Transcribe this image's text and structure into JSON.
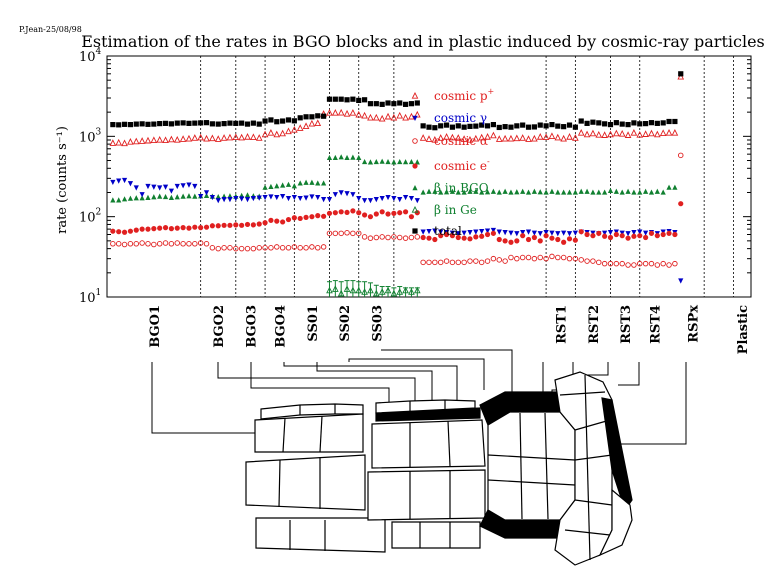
{
  "author_stamp": "P.Jean-25/08/98",
  "chart_data": {
    "type": "scatter",
    "title": "Estimation of the rates in BGO blocks and in plastic induced by cosmic-ray particles",
    "ylabel": "rate (counts s⁻¹)",
    "yscale": "log",
    "ylim": [
      10,
      10000
    ],
    "y_ticks": [
      {
        "value": 10,
        "base": "10",
        "exp": "1"
      },
      {
        "value": 100,
        "base": "10",
        "exp": "2"
      },
      {
        "value": 1000,
        "base": "10",
        "exp": "3"
      },
      {
        "value": 10000,
        "base": "10",
        "exp": "4"
      }
    ],
    "x": [
      1,
      2,
      3,
      4,
      5,
      6,
      7,
      8,
      9,
      10,
      11,
      12,
      13,
      14,
      15,
      16,
      17,
      18,
      19,
      20,
      21,
      22,
      23,
      24,
      25,
      26,
      27,
      28,
      29,
      30,
      31,
      32,
      33,
      34,
      35,
      36,
      37,
      38,
      39,
      40,
      41,
      42,
      43,
      44,
      45,
      46,
      47,
      48,
      49,
      50,
      51,
      52,
      53,
      54,
      55,
      56,
      57,
      58,
      59,
      60,
      61,
      62,
      63,
      64,
      65,
      66,
      67,
      68,
      69,
      70,
      71,
      72,
      73,
      74,
      75,
      76,
      77,
      78,
      79,
      80,
      81,
      82,
      83,
      84,
      85,
      86,
      87,
      88,
      89,
      90,
      91,
      92,
      93,
      94,
      95,
      96,
      97,
      98
    ],
    "xlim": [
      0,
      110
    ],
    "grid": false,
    "group_dividers": [
      16,
      22,
      27,
      32,
      38,
      43,
      49,
      75,
      80,
      86,
      91,
      102,
      107
    ],
    "groups": [
      {
        "name": "BGO1",
        "x": 8
      },
      {
        "name": "BGO2",
        "x": 19
      },
      {
        "name": "BGO3",
        "x": 24.5
      },
      {
        "name": "BGO4",
        "x": 29.5
      },
      {
        "name": "SS01",
        "x": 35
      },
      {
        "name": "SS02",
        "x": 40.5
      },
      {
        "name": "SS03",
        "x": 46
      },
      {
        "name": "RST1",
        "x": 77.5
      },
      {
        "name": "RST2",
        "x": 83
      },
      {
        "name": "RST3",
        "x": 88.5
      },
      {
        "name": "RST4",
        "x": 93.5
      },
      {
        "name": "RSPx",
        "x": 100
      },
      {
        "name": "Plastic",
        "x": 108.5
      }
    ],
    "legend": {
      "placement": "top-center",
      "entries": [
        {
          "key": "p",
          "label": "cosmic p",
          "sup": "+"
        },
        {
          "key": "gamma",
          "label": "cosmic γ",
          "sup": ""
        },
        {
          "key": "alpha",
          "label": "cosmic α",
          "sup": ""
        },
        {
          "key": "e",
          "label": "cosmic e",
          "sup": "-"
        },
        {
          "key": "bbgo",
          "label": "β in BGO",
          "sup": ""
        },
        {
          "key": "bge",
          "label": "β in Ge",
          "sup": ""
        },
        {
          "key": "total",
          "label": "total",
          "sup": ""
        }
      ]
    },
    "series": [
      {
        "key": "total",
        "marker": "square-filled",
        "color": "#000000",
        "values": [
          1400,
          1390,
          1410,
          1400,
          1420,
          1430,
          1410,
          1420,
          1440,
          1450,
          1430,
          1460,
          1470,
          1450,
          1460,
          1470,
          1480,
          1430,
          1420,
          1440,
          1460,
          1450,
          1460,
          1420,
          1460,
          1420,
          1550,
          1600,
          1520,
          1550,
          1600,
          1560,
          1700,
          1750,
          1750,
          1800,
          1780,
          2900,
          2900,
          2900,
          2850,
          2900,
          2800,
          2850,
          2550,
          2550,
          2500,
          2600,
          2550,
          2600,
          2500,
          2550,
          2600,
          1350,
          1300,
          1280,
          1350,
          1380,
          1300,
          1350,
          1300,
          1330,
          1340,
          1380,
          1350,
          1400,
          1290,
          1320,
          1300,
          1350,
          1380,
          1300,
          1310,
          1380,
          1350,
          1400,
          1340,
          1320,
          1380,
          1300,
          1550,
          1450,
          1500,
          1470,
          1430,
          1400,
          1480,
          1420,
          1400,
          1470,
          1430,
          1440,
          1480,
          1450,
          1470,
          1530,
          1530,
          6000
        ]
      },
      {
        "key": "p",
        "marker": "triangle-open",
        "color": "#e02020",
        "values": [
          820,
          830,
          815,
          850,
          860,
          870,
          880,
          890,
          900,
          890,
          910,
          900,
          920,
          930,
          950,
          960,
          930,
          940,
          920,
          950,
          960,
          970,
          960,
          980,
          970,
          950,
          1050,
          1100,
          1050,
          1080,
          1150,
          1200,
          1260,
          1330,
          1430,
          1450,
          1890,
          1950,
          1950,
          1960,
          1900,
          1950,
          1850,
          1800,
          1700,
          1700,
          1650,
          1750,
          1700,
          1800,
          1700,
          1750,
          1850,
          950,
          920,
          900,
          950,
          980,
          960,
          950,
          920,
          900,
          930,
          960,
          980,
          1020,
          920,
          930,
          930,
          940,
          950,
          920,
          930,
          980,
          970,
          1000,
          960,
          930,
          980,
          950,
          1100,
          1050,
          1080,
          1040,
          1030,
          1050,
          1080,
          1070,
          1030,
          1100,
          1040,
          1060,
          1080,
          1050,
          1090,
          1100,
          1100,
          5500
        ]
      },
      {
        "key": "alpha",
        "marker": "circle-open",
        "color": "#e02020",
        "values": [
          46,
          46,
          45,
          46,
          46,
          47,
          46,
          45,
          46,
          47,
          46,
          47,
          46,
          46,
          46,
          47,
          46,
          41,
          40,
          41,
          41,
          40,
          40,
          40,
          40,
          41,
          41,
          41,
          42,
          41,
          41,
          42,
          41,
          41,
          42,
          41,
          42,
          62,
          62,
          62,
          63,
          62,
          62,
          56,
          54,
          55,
          56,
          55,
          56,
          55,
          54,
          55,
          56,
          27,
          27,
          27,
          27,
          28,
          27,
          27,
          27,
          28,
          28,
          27,
          28,
          30,
          29,
          28,
          31,
          30,
          31,
          31,
          30,
          31,
          30,
          32,
          31,
          31,
          30,
          30,
          29,
          28,
          28,
          27,
          26,
          26,
          26,
          26,
          25,
          25,
          26,
          26,
          26,
          25,
          26,
          25,
          26,
          580
        ]
      },
      {
        "key": "e",
        "marker": "circle-filled",
        "color": "#e02020",
        "values": [
          66,
          65,
          64,
          66,
          68,
          70,
          70,
          71,
          72,
          73,
          71,
          72,
          73,
          72,
          74,
          73,
          74,
          77,
          77,
          78,
          78,
          79,
          78,
          80,
          79,
          81,
          84,
          90,
          88,
          86,
          92,
          97,
          95,
          98,
          100,
          103,
          101,
          110,
          112,
          115,
          113,
          118,
          112,
          105,
          100,
          108,
          115,
          108,
          110,
          112,
          115,
          100,
          112,
          55,
          54,
          52,
          58,
          60,
          58,
          55,
          54,
          53,
          56,
          57,
          60,
          62,
          52,
          50,
          48,
          50,
          58,
          52,
          55,
          50,
          58,
          54,
          52,
          48,
          53,
          51,
          65,
          60,
          58,
          62,
          57,
          55,
          60,
          58,
          54,
          57,
          58,
          55,
          62,
          58,
          60,
          62,
          60,
          145
        ]
      },
      {
        "key": "gamma",
        "marker": "triangle-down-filled",
        "color": "#0000c8",
        "values": [
          270,
          280,
          285,
          260,
          230,
          190,
          240,
          235,
          230,
          235,
          210,
          240,
          245,
          250,
          240,
          180,
          200,
          175,
          160,
          165,
          165,
          170,
          168,
          165,
          170,
          172,
          175,
          178,
          175,
          180,
          170,
          175,
          170,
          172,
          178,
          175,
          165,
          165,
          190,
          200,
          195,
          190,
          170,
          160,
          160,
          165,
          170,
          175,
          170,
          165,
          175,
          170,
          160,
          65,
          66,
          67,
          65,
          64,
          63,
          62,
          63,
          64,
          65,
          66,
          67,
          68,
          65,
          64,
          63,
          62,
          64,
          65,
          63,
          62,
          64,
          63,
          62,
          63,
          62,
          63,
          65,
          64,
          63,
          62,
          63,
          64,
          65,
          63,
          62,
          64,
          65,
          63,
          64,
          62,
          65,
          66,
          64,
          16
        ]
      },
      {
        "key": "bbgo",
        "marker": "triangle-filled",
        "color": "#108030",
        "values": [
          160,
          160,
          165,
          168,
          170,
          170,
          172,
          175,
          178,
          176,
          172,
          175,
          178,
          180,
          178,
          180,
          182,
          178,
          176,
          178,
          180,
          178,
          182,
          185,
          180,
          178,
          230,
          235,
          240,
          245,
          250,
          240,
          260,
          265,
          265,
          260,
          260,
          540,
          540,
          550,
          540,
          545,
          540,
          480,
          475,
          480,
          485,
          480,
          475,
          480,
          478,
          480,
          475,
          200,
          205,
          205,
          200,
          202,
          205,
          200,
          200,
          205,
          205,
          200,
          202,
          205,
          200,
          205,
          200,
          202,
          205,
          200,
          205,
          202,
          200,
          205,
          200,
          200,
          200,
          200,
          205,
          205,
          200,
          200,
          200,
          210,
          205,
          200,
          205,
          200,
          200,
          205,
          200,
          205,
          200,
          230,
          230,
          null
        ]
      },
      {
        "key": "bge",
        "marker": "triangle-open",
        "color": "#108030",
        "values": [
          null,
          null,
          null,
          null,
          null,
          null,
          null,
          null,
          null,
          null,
          null,
          null,
          null,
          null,
          null,
          null,
          null,
          null,
          null,
          null,
          null,
          null,
          null,
          null,
          null,
          null,
          null,
          null,
          null,
          null,
          null,
          null,
          null,
          null,
          null,
          null,
          null,
          12,
          12.5,
          11,
          12.5,
          12,
          12,
          11.5,
          12,
          11,
          11.5,
          12,
          11,
          11.5,
          12,
          11.5,
          12,
          null,
          null,
          null,
          null,
          null,
          null,
          null,
          null,
          null,
          null,
          null,
          null,
          null,
          null,
          null,
          null,
          null,
          null,
          null,
          null,
          null,
          null,
          null,
          null,
          null,
          null,
          null,
          null,
          null,
          null,
          null,
          null,
          null,
          null,
          null,
          null,
          null,
          null,
          null,
          null,
          null,
          null,
          null,
          null,
          null
        ],
        "err_lo": [
          null,
          null,
          null,
          null,
          null,
          null,
          null,
          null,
          null,
          null,
          null,
          null,
          null,
          null,
          null,
          null,
          null,
          null,
          null,
          null,
          null,
          null,
          null,
          null,
          null,
          null,
          null,
          null,
          null,
          null,
          null,
          null,
          null,
          null,
          null,
          null,
          null,
          10,
          10,
          10,
          10,
          10,
          10,
          10,
          10,
          10,
          10,
          10,
          10,
          10,
          10,
          10,
          10,
          null,
          null,
          null,
          null,
          null,
          null,
          null,
          null,
          null,
          null,
          null,
          null,
          null,
          null,
          null,
          null,
          null,
          null,
          null,
          null,
          null,
          null,
          null,
          null,
          null,
          null,
          null,
          null,
          null,
          null,
          null,
          null,
          null,
          null,
          null,
          null,
          null,
          null,
          null,
          null,
          null,
          null,
          null,
          null,
          null
        ],
        "err_hi": [
          null,
          null,
          null,
          null,
          null,
          null,
          null,
          null,
          null,
          null,
          null,
          null,
          null,
          null,
          null,
          null,
          null,
          null,
          null,
          null,
          null,
          null,
          null,
          null,
          null,
          null,
          null,
          null,
          null,
          null,
          null,
          null,
          null,
          null,
          null,
          null,
          null,
          15.5,
          16,
          15.5,
          16,
          16,
          15.5,
          15.5,
          15,
          14,
          13.5,
          13.5,
          13,
          13.5,
          13,
          13,
          13,
          null,
          null,
          null,
          null,
          null,
          null,
          null,
          null,
          null,
          null,
          null,
          null,
          null,
          null,
          null,
          null,
          null,
          null,
          null,
          null,
          null,
          null,
          null,
          null,
          null,
          null,
          null,
          null,
          null,
          null,
          null,
          null,
          null,
          null,
          null,
          null,
          null,
          null,
          null,
          null,
          null,
          null,
          null,
          null,
          null
        ]
      }
    ]
  }
}
